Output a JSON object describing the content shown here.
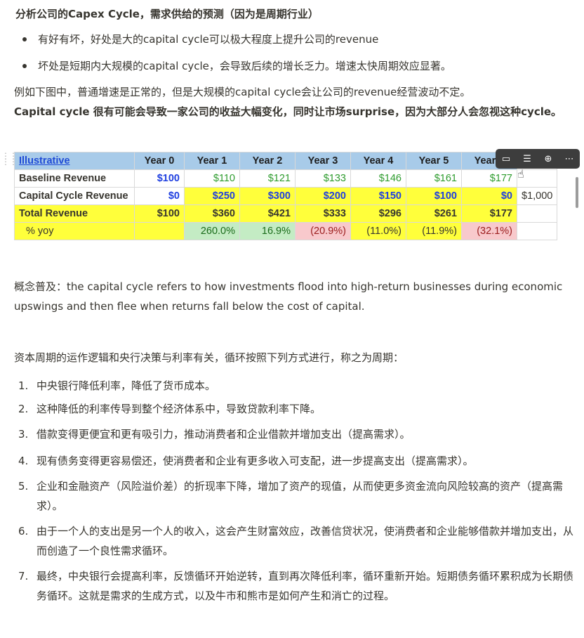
{
  "heading": "分析公司的Capex Cycle，需求供给的预测（因为是周期行业）",
  "bullets": [
    "有好有坏，好处是大的capital cycle可以极大程度上提升公司的revenue",
    "坏处是短期内大规模的capital cycle，会导致后续的增长乏力。增速太快周期效应显著。"
  ],
  "para1": "例如下图中，普通增速是正常的，但是大规模的capital cycle会让公司的revenue经营波动不定。",
  "para2_bold": "Capital cycle 很有可能会导致一家公司的收益大幅变化，同时让市场surprise，因为大部分人会忽视这种cycle。",
  "table": {
    "header": [
      "Illustrative",
      "Year 0",
      "Year 1",
      "Year 2",
      "Year 3",
      "Year 4",
      "Year 5",
      "Year 6"
    ],
    "rows": [
      {
        "label": "Baseline Revenue",
        "cells": [
          "$100",
          "$110",
          "$121",
          "$133",
          "$146",
          "$161",
          "$177"
        ],
        "extra": ""
      },
      {
        "label": "Capital Cycle Revenue",
        "cells": [
          "$0",
          "$250",
          "$300",
          "$200",
          "$150",
          "$100",
          "$0"
        ],
        "extra": "$1,000"
      },
      {
        "label": "Total Revenue",
        "cells": [
          "$100",
          "$360",
          "$421",
          "$333",
          "$296",
          "$261",
          "$177"
        ],
        "extra": ""
      },
      {
        "label": "% yoy",
        "cells": [
          "",
          "260.0%",
          "16.9%",
          "(20.9%)",
          "(11.0%)",
          "(11.9%)",
          "(32.1%)"
        ],
        "extra": ""
      }
    ]
  },
  "toolbar_icons": [
    "comment-icon",
    "column-icon",
    "download-icon",
    "more-icon"
  ],
  "para3": "概念普及：the capital cycle refers to how investments flood into high-return businesses during economic upswings and then flee when returns fall below the cost of capital.",
  "para4": "资本周期的运作逻辑和央行决策与利率有关，循环按照下列方式进行，称之为周期：",
  "list": [
    {
      "n": "1.",
      "t": "中央银行降低利率，降低了货币成本。"
    },
    {
      "n": "2.",
      "t": "这种降低的利率传导到整个经济体系中，导致贷款利率下降。"
    },
    {
      "n": "3.",
      "t": "借款变得更便宜和更有吸引力，推动消费者和企业借款并增加支出（提高需求）。"
    },
    {
      "n": "4.",
      "t": "现有债务变得更容易偿还，使消费者和企业有更多收入可支配，进一步提高支出（提高需求）。"
    },
    {
      "n": "5.",
      "t": "企业和金融资产（风险溢价差）的折现率下降，增加了资产的现值，从而使更多资金流向风险较高的资产（提高需求）。"
    },
    {
      "n": "6.",
      "t": "由于一个人的支出是另一个人的收入，这会产生财富效应，改善信贷状况，使消费者和企业能够借款并增加支出，从而创造了一个良性需求循环。"
    },
    {
      "n": "7.",
      "t": "最终，中央银行会提高利率，反馈循环开始逆转，直到再次降低利率，循环重新开始。短期债务循环累积成为长期债务循环。这就是需求的生成方式，以及牛市和熊市是如何产生和消亡的过程。"
    }
  ]
}
